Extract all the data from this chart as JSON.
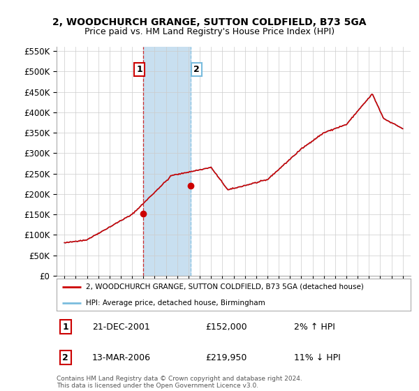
{
  "title": "2, WOODCHURCH GRANGE, SUTTON COLDFIELD, B73 5GA",
  "subtitle": "Price paid vs. HM Land Registry's House Price Index (HPI)",
  "legend_line1": "2, WOODCHURCH GRANGE, SUTTON COLDFIELD, B73 5GA (detached house)",
  "legend_line2": "HPI: Average price, detached house, Birmingham",
  "transaction1_date": "21-DEC-2001",
  "transaction1_price": "£152,000",
  "transaction1_hpi": "2% ↑ HPI",
  "transaction2_date": "13-MAR-2006",
  "transaction2_price": "£219,950",
  "transaction2_hpi": "11% ↓ HPI",
  "footer": "Contains HM Land Registry data © Crown copyright and database right 2024.\nThis data is licensed under the Open Government Licence v3.0.",
  "hpi_color": "#7abcde",
  "price_color": "#cc0000",
  "marker_color": "#cc0000",
  "vspan_color": "#c8dff0",
  "ylim_min": 0,
  "ylim_max": 560000,
  "yticks": [
    0,
    50000,
    100000,
    150000,
    200000,
    250000,
    300000,
    350000,
    400000,
    450000,
    500000,
    550000
  ],
  "transaction1_x": 2001.97,
  "transaction1_y": 152000,
  "transaction2_x": 2006.21,
  "transaction2_y": 219950,
  "xlim_min": 1994.3,
  "xlim_max": 2025.7,
  "background_color": "#ffffff",
  "grid_color": "#cccccc"
}
